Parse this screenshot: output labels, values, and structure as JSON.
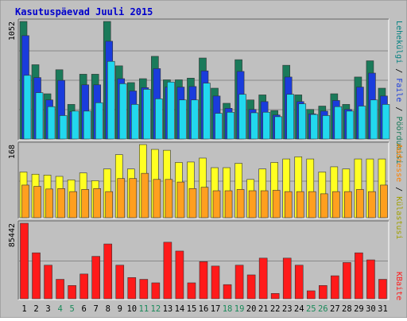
{
  "chart_data": {
    "type": "bar",
    "title": "Kasutuspäevad Juuli 2015",
    "categories": [
      "1",
      "2",
      "3",
      "4",
      "5",
      "6",
      "7",
      "8",
      "9",
      "10",
      "11",
      "12",
      "13",
      "14",
      "15",
      "16",
      "17",
      "18",
      "19",
      "20",
      "21",
      "22",
      "23",
      "24",
      "25",
      "26",
      "27",
      "28",
      "29",
      "30",
      "31"
    ],
    "weekend_days": [
      "4",
      "5",
      "11",
      "12",
      "18",
      "19",
      "25",
      "26"
    ],
    "panels": [
      {
        "id": "top",
        "max_label": "1052",
        "ylim": [
          0,
          1052
        ],
        "series": [
          {
            "name": "Pöördumisi",
            "color": "#1a7a5a",
            "values": [
              1052,
              665,
              405,
              620,
              310,
              580,
              580,
              1052,
              655,
              505,
              540,
              740,
              530,
              530,
              545,
              725,
              455,
              320,
              710,
              350,
              395,
              255,
              660,
              395,
              265,
              295,
              405,
              310,
              555,
              700,
              455
            ]
          },
          {
            "name": "Faile",
            "color": "#1a3cdc",
            "values": [
              925,
              550,
              350,
              525,
              245,
              485,
              485,
              875,
              540,
              430,
              460,
              630,
              465,
              465,
              470,
              610,
              385,
              275,
              605,
              265,
              335,
              215,
              555,
              335,
              225,
              250,
              345,
              265,
              465,
              590,
              385
            ]
          },
          {
            "name": "Lehekülgi",
            "color": "#22d8ee",
            "values": [
              570,
              415,
              290,
              210,
              250,
              250,
              325,
              695,
              495,
              310,
              445,
              360,
              510,
              350,
              350,
              500,
              230,
              240,
              400,
              235,
              240,
              200,
              400,
              315,
              220,
              210,
              290,
              250,
              295,
              350,
              310
            ]
          }
        ]
      },
      {
        "id": "middle",
        "max_label": "168",
        "ylim": [
          0,
          168
        ],
        "series": [
          {
            "name": "Külastusi",
            "color": "#ffff22",
            "values": [
              105,
              100,
              98,
              95,
              87,
              103,
              85,
              112,
              145,
              112,
              168,
              157,
              155,
              127,
              128,
              137,
              115,
              115,
              125,
              88,
              112,
              127,
              135,
              140,
              135,
              105,
              117,
              112,
              135,
              135,
              135
            ]
          },
          {
            "name": "Aadresse",
            "color": "#ff9f1f",
            "values": [
              75,
              72,
              66,
              67,
              60,
              65,
              67,
              60,
              90,
              90,
              102,
              88,
              88,
              82,
              67,
              70,
              62,
              62,
              65,
              62,
              62,
              63,
              60,
              60,
              60,
              55,
              60,
              60,
              65,
              60,
              75
            ]
          }
        ]
      },
      {
        "id": "bottom",
        "max_label": "85442",
        "ylim": [
          0,
          85442
        ],
        "series": [
          {
            "name": "KBaite",
            "color": "#ff1a1a",
            "values": [
              85442,
              52000,
              38000,
              22000,
              15000,
              28000,
              48000,
              62000,
              38000,
              24000,
              22000,
              18000,
              64000,
              54000,
              18000,
              42000,
              37000,
              16000,
              38000,
              27000,
              46000,
              6000,
              46000,
              38000,
              9000,
              15000,
              26000,
              41000,
              52000,
              44000,
              22000
            ]
          }
        ]
      }
    ],
    "legend_top": [
      "Pöördumisi",
      "Faile",
      "Lehekülgi"
    ],
    "legend_middle": [
      "Külastusi",
      "Aadresse"
    ],
    "legend_bottom": [
      "KBaite"
    ],
    "legend_separator": "/",
    "colors": {
      "background": "#c0c0c0",
      "plot_bg": "#c0c0c0",
      "title": "#0000cc",
      "weekend_label": "#1a8a5a",
      "weekday_label": "#000000",
      "grid": "#888888"
    }
  }
}
